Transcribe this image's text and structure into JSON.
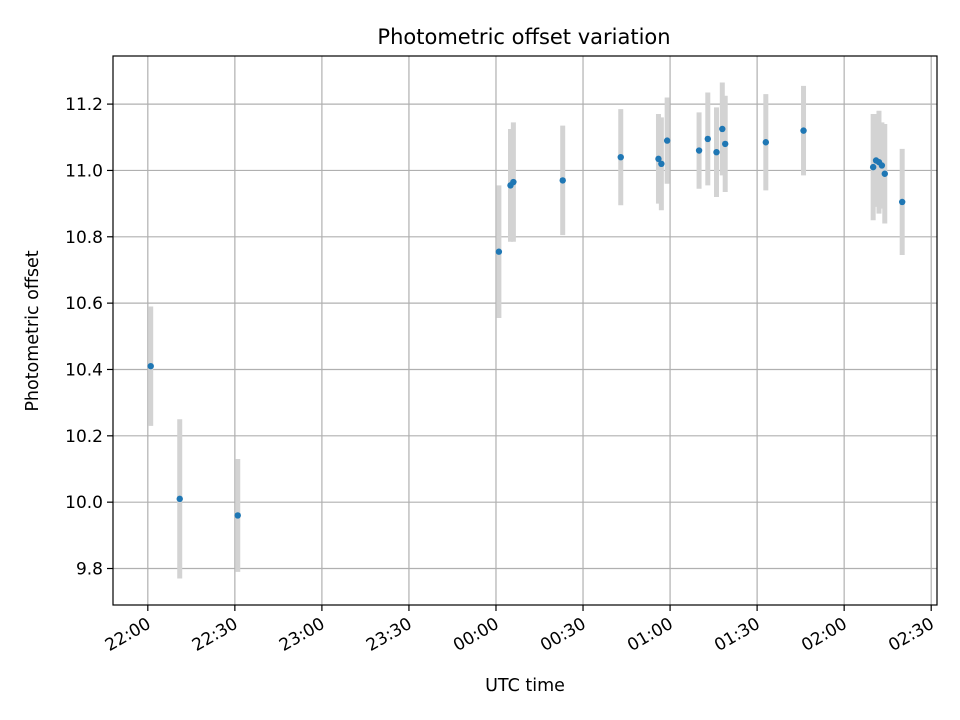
{
  "chart_data": {
    "type": "scatter",
    "title": "Photometric offset variation",
    "xlabel": "UTC time",
    "ylabel": "Photometric offset",
    "x_ticks": [
      "22:00",
      "22:30",
      "23:00",
      "23:30",
      "00:00",
      "00:30",
      "01:00",
      "01:30",
      "02:00",
      "02:30"
    ],
    "y_ticks": [
      "9.8",
      "10.0",
      "10.2",
      "10.4",
      "10.6",
      "10.8",
      "11.0",
      "11.2"
    ],
    "ylim": [
      9.69,
      11.345
    ],
    "xlim": [
      "21:48",
      "02:32"
    ],
    "grid": true,
    "colors": {
      "point": "#1f77b4",
      "errorbar": "#d3d3d3",
      "grid": "#b0b0b0"
    },
    "points": [
      {
        "x": "22:01",
        "y": 10.41,
        "err": 0.18
      },
      {
        "x": "22:11",
        "y": 10.01,
        "err": 0.24
      },
      {
        "x": "22:31",
        "y": 9.96,
        "err": 0.17
      },
      {
        "x": "00:01",
        "y": 10.755,
        "err": 0.2
      },
      {
        "x": "00:05",
        "y": 10.955,
        "err": 0.17
      },
      {
        "x": "00:06",
        "y": 10.965,
        "err": 0.18
      },
      {
        "x": "00:23",
        "y": 10.97,
        "err": 0.165
      },
      {
        "x": "00:43",
        "y": 11.04,
        "err": 0.145
      },
      {
        "x": "00:56",
        "y": 11.035,
        "err": 0.135
      },
      {
        "x": "00:57",
        "y": 11.02,
        "err": 0.14
      },
      {
        "x": "00:59",
        "y": 11.09,
        "err": 0.13
      },
      {
        "x": "01:10",
        "y": 11.06,
        "err": 0.115
      },
      {
        "x": "01:13",
        "y": 11.095,
        "err": 0.14
      },
      {
        "x": "01:16",
        "y": 11.055,
        "err": 0.135
      },
      {
        "x": "01:18",
        "y": 11.125,
        "err": 0.14
      },
      {
        "x": "01:19",
        "y": 11.08,
        "err": 0.145
      },
      {
        "x": "01:33",
        "y": 11.085,
        "err": 0.145
      },
      {
        "x": "01:46",
        "y": 11.12,
        "err": 0.135
      },
      {
        "x": "02:10",
        "y": 11.01,
        "err": 0.16
      },
      {
        "x": "02:11",
        "y": 11.03,
        "err": 0.14
      },
      {
        "x": "02:12",
        "y": 11.025,
        "err": 0.155
      },
      {
        "x": "02:13",
        "y": 11.015,
        "err": 0.13
      },
      {
        "x": "02:14",
        "y": 10.99,
        "err": 0.15
      },
      {
        "x": "02:20",
        "y": 10.905,
        "err": 0.16
      }
    ]
  }
}
